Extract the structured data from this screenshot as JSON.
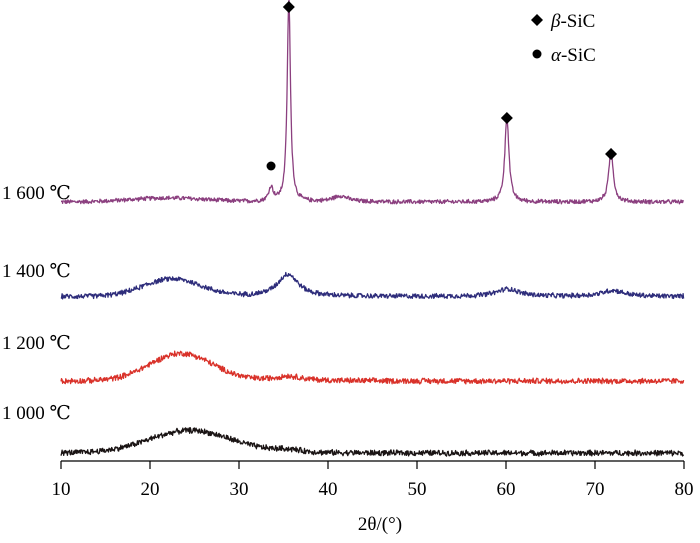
{
  "chart_data": {
    "type": "line",
    "title": "",
    "xlabel": "2θ/(°)",
    "ylabel": "",
    "xlim": [
      10,
      80
    ],
    "xticks": [
      10,
      20,
      30,
      40,
      50,
      60,
      70,
      80
    ],
    "grid": false,
    "legend_placement": "top-right",
    "legend": [
      {
        "marker": "diamond",
        "label_symbol": "β",
        "label_rest": "-SiC"
      },
      {
        "marker": "circle",
        "label_symbol": "α",
        "label_rest": "-SiC"
      }
    ],
    "series": [
      {
        "name": "1 600 ℃",
        "color": "#8b3f7f",
        "baseline": 0.68,
        "hump": {
          "center": 22,
          "width": 6,
          "height": 0.08
        },
        "noise": 0.03,
        "peaks": [
          {
            "x": 33.6,
            "height": 0.28,
            "width": 0.3
          },
          {
            "x": 35.6,
            "height": 4.05,
            "width": 0.22
          },
          {
            "x": 41.4,
            "height": 0.12,
            "width": 1.0
          },
          {
            "x": 60.1,
            "height": 1.7,
            "width": 0.28
          },
          {
            "x": 71.8,
            "height": 1.05,
            "width": 0.3
          }
        ]
      },
      {
        "name": "1 400 ℃",
        "color": "#2e2d7b",
        "baseline": 0.07,
        "hump": {
          "center": 22.5,
          "width": 4.5,
          "height": 0.35
        },
        "noise": 0.035,
        "peaks": [
          {
            "x": 35.5,
            "height": 0.45,
            "width": 1.4
          },
          {
            "x": 60.2,
            "height": 0.15,
            "width": 1.5
          },
          {
            "x": 72.0,
            "height": 0.12,
            "width": 1.5
          }
        ]
      },
      {
        "name": "1 200 ℃",
        "color": "#d9322a",
        "baseline": 0.06,
        "hump": {
          "center": 23.5,
          "width": 5.0,
          "height": 0.55
        },
        "noise": 0.04,
        "peaks": [
          {
            "x": 35.5,
            "height": 0.1,
            "width": 2.0
          }
        ]
      },
      {
        "name": "1 000 ℃",
        "color": "#1a1414",
        "baseline": 0.04,
        "hump": {
          "center": 24.5,
          "width": 6.5,
          "height": 0.45
        },
        "noise": 0.04,
        "peaks": [
          {
            "x": 35.5,
            "height": 0.06,
            "width": 2.0
          }
        ]
      }
    ],
    "annotations": [
      {
        "marker": "diamond",
        "x": 35.6,
        "series": "1 600 ℃",
        "phase": "β-SiC"
      },
      {
        "marker": "diamond",
        "x": 60.1,
        "series": "1 600 ℃",
        "phase": "β-SiC"
      },
      {
        "marker": "diamond",
        "x": 71.8,
        "series": "1 600 ℃",
        "phase": "β-SiC"
      },
      {
        "marker": "circle",
        "x": 33.6,
        "series": "1 600 ℃",
        "phase": "α-SiC"
      }
    ]
  }
}
